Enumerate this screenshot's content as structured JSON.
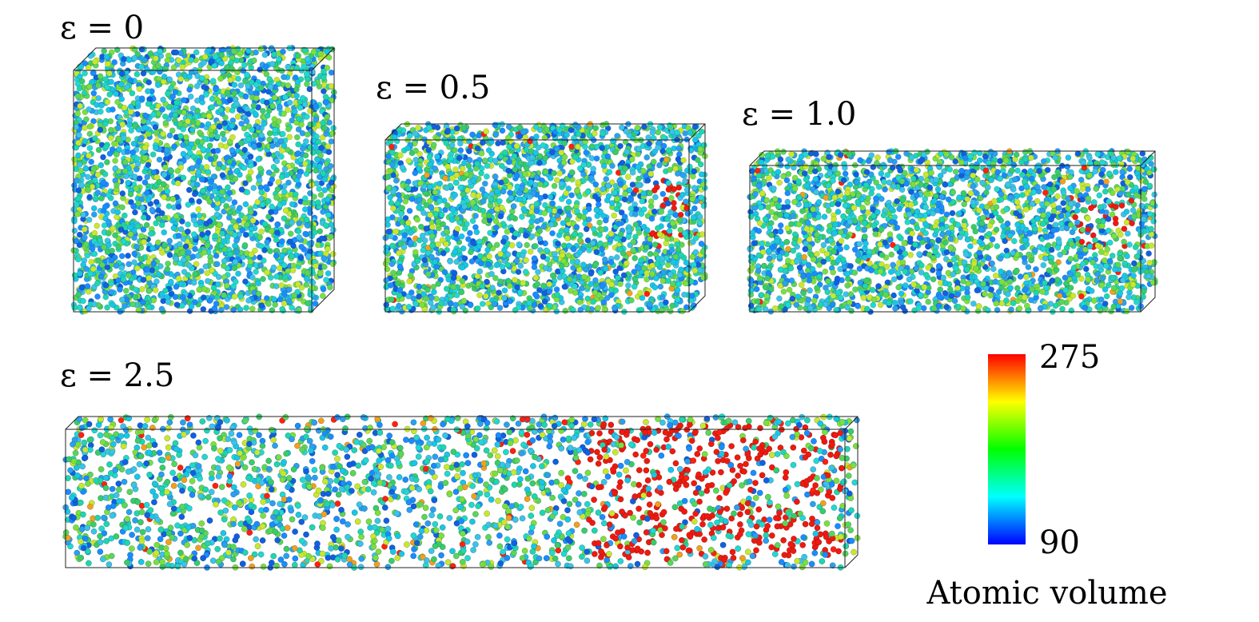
{
  "panels": [
    {
      "label": "ε = 0"
    },
    {
      "label": "ε = 0.5"
    },
    {
      "label": "ε = 1.0"
    },
    {
      "label": "ε = 2.5"
    }
  ],
  "colorbar": {
    "max": 275,
    "min": 90,
    "label": "Atomic volume"
  }
}
